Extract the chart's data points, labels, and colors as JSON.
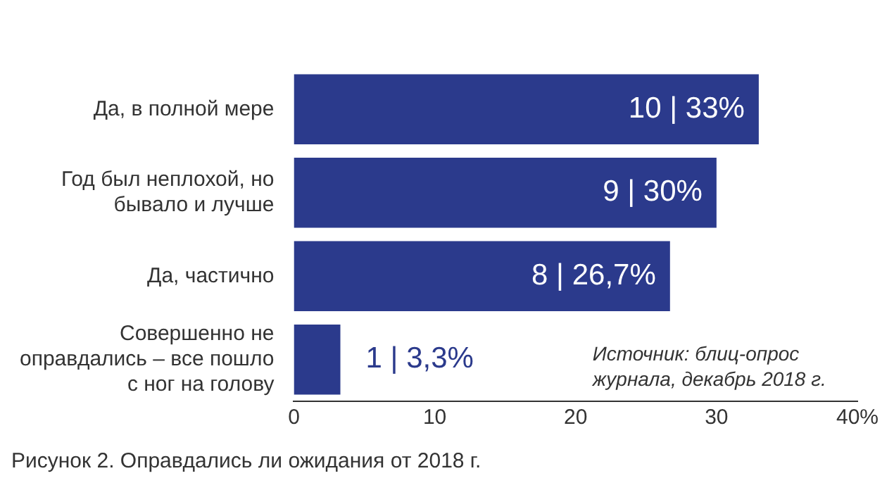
{
  "chart_data": {
    "type": "bar",
    "orientation": "horizontal",
    "title": "Рисунок 2. Оправдались ли ожидания от 2018 г.",
    "categories": [
      "Да, в полной мере",
      "Год был неплохой, но бывало и лучше",
      "Да, частично",
      "Совершенно не оправдались – все пошло с ног на голову"
    ],
    "values": [
      33,
      30,
      26.7,
      3.3
    ],
    "value_labels": [
      "10 | 33%",
      "9 | 30%",
      "8 | 26,7%",
      "1 | 3,3%"
    ],
    "color": "#2b3a8c",
    "xlim": [
      0,
      40
    ],
    "xticks": [
      0,
      10,
      20,
      30,
      {
        "value": 40,
        "label": "40%"
      }
    ],
    "grid": false,
    "annotations": [
      "Источник: блиц-опрос журнала, декабрь 2018 г."
    ]
  }
}
